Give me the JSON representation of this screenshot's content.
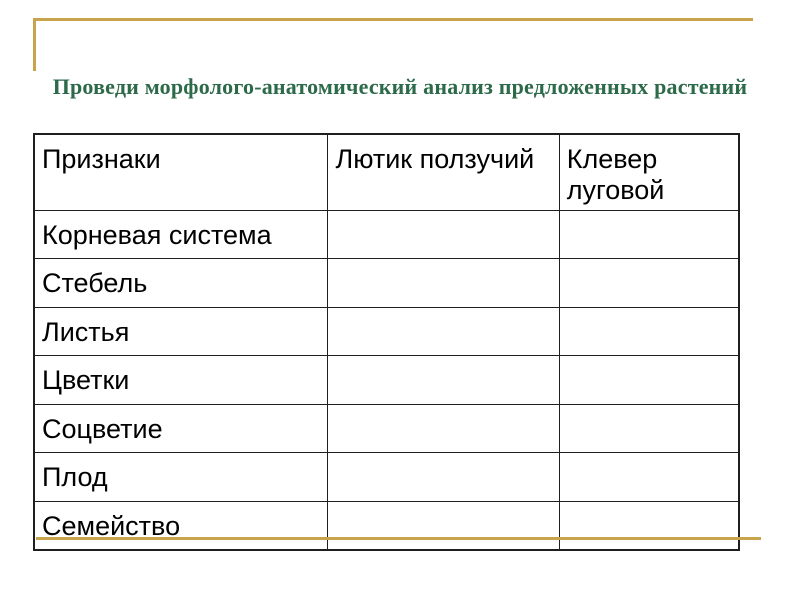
{
  "slide": {
    "title": "Проведи морфолого-анатомический анализ предложенных растений",
    "table": {
      "headers": [
        "Признаки",
        "Лютик ползучий",
        "Клевер луговой"
      ],
      "rows": [
        "Корневая система",
        "Стебель",
        "Листья",
        "Цветки",
        "Соцветие",
        "Плод",
        "Семейство"
      ],
      "empty_cell": ""
    },
    "colors": {
      "title_green": "#2d6a4a",
      "accent_gold": "#c9a44f",
      "table_border": "#1f1f1f",
      "text": "#000000",
      "background": "#ffffff"
    }
  }
}
